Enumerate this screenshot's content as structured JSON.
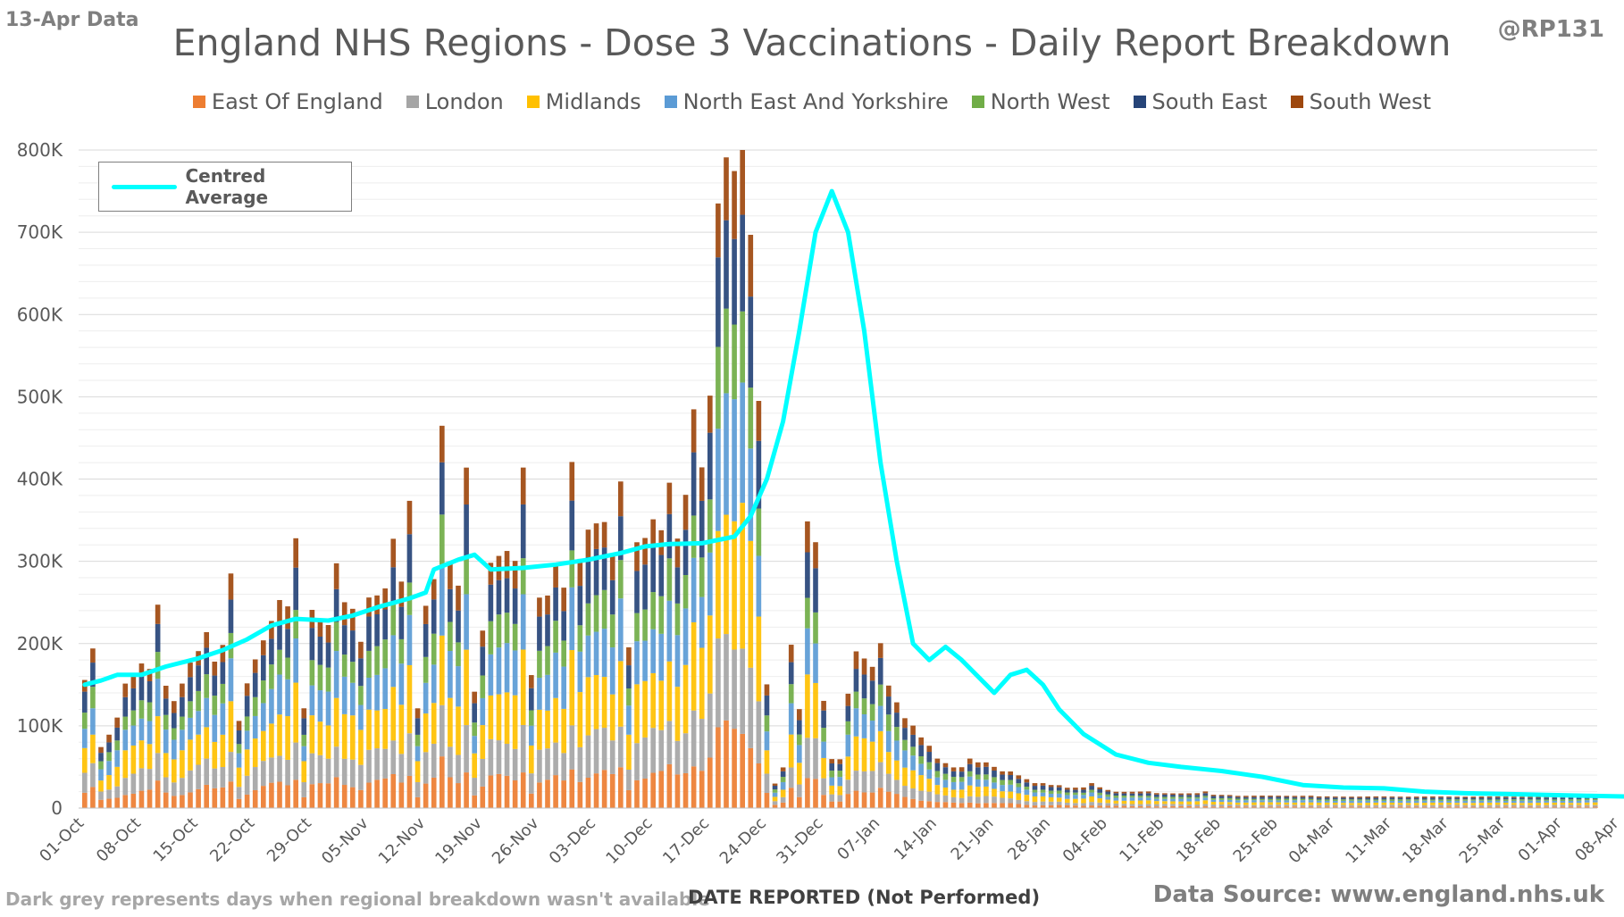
{
  "header": {
    "data_date": "13-Apr Data",
    "handle": "@RP131",
    "title": "England NHS Regions - Dose 3 Vaccinations - Daily Report Breakdown"
  },
  "footer": {
    "note": "Dark grey represents days when regional breakdown wasn't available",
    "x_title": "DATE REPORTED (Not Performed)",
    "source": "Data Source: www.england.nhs.uk"
  },
  "avg_legend_label": "Centred Average",
  "chart_data": {
    "type": "bar",
    "stacked": true,
    "title": "England NHS Regions - Dose 3 Vaccinations - Daily Report Breakdown",
    "xlabel": "DATE REPORTED (Not Performed)",
    "ylabel": "",
    "ylim": [
      0,
      800000
    ],
    "y_ticks": [
      "0",
      "100K",
      "200K",
      "300K",
      "400K",
      "500K",
      "600K",
      "700K",
      "800K"
    ],
    "x_tick_labels": [
      "01-Oct",
      "08-Oct",
      "15-Oct",
      "22-Oct",
      "29-Oct",
      "05-Nov",
      "12-Nov",
      "19-Nov",
      "26-Nov",
      "03-Dec",
      "10-Dec",
      "17-Dec",
      "24-Dec",
      "31-Dec",
      "07-Jan",
      "14-Jan",
      "21-Jan",
      "28-Jan",
      "04-Feb",
      "11-Feb",
      "18-Feb",
      "25-Feb",
      "04-Mar",
      "11-Mar",
      "18-Mar",
      "25-Mar",
      "01-Apr",
      "08-Apr"
    ],
    "grid": true,
    "legend_position": "top",
    "series": [
      {
        "name": "East Of England",
        "color": "#ed7d31",
        "share": 0.12
      },
      {
        "name": "London",
        "color": "#a5a5a5",
        "share": 0.14
      },
      {
        "name": "Midlands",
        "color": "#ffc000",
        "share": 0.2
      },
      {
        "name": "North East And Yorkshire",
        "color": "#5b9bd5",
        "share": 0.17
      },
      {
        "name": "North West",
        "color": "#70ad47",
        "share": 0.12
      },
      {
        "name": "South East",
        "color": "#264478",
        "share": 0.15
      },
      {
        "name": "South West",
        "color": "#9e480e",
        "share": 0.1
      }
    ],
    "daily_totals_k": [
      155,
      195,
      75,
      90,
      110,
      150,
      160,
      175,
      170,
      250,
      150,
      130,
      150,
      175,
      190,
      215,
      180,
      200,
      285,
      105,
      150,
      180,
      205,
      230,
      255,
      245,
      325,
      120,
      240,
      230,
      225,
      300,
      250,
      240,
      200,
      255,
      260,
      270,
      330,
      275,
      370,
      120,
      245,
      280,
      470,
      300,
      270,
      410,
      140,
      215,
      300,
      310,
      315,
      300,
      410,
      160,
      255,
      260,
      300,
      270,
      420,
      300,
      335,
      345,
      350,
      310,
      400,
      195,
      320,
      325,
      350,
      340,
      400,
      330,
      380,
      480,
      410,
      500,
      740,
      800,
      780,
      810,
      690,
      490,
      150,
      30,
      50,
      200,
      120,
      345,
      320,
      130,
      60,
      60,
      140,
      190,
      180,
      170,
      200,
      150,
      130,
      110,
      100,
      85,
      75,
      60,
      55,
      50,
      50,
      60,
      55,
      55,
      50,
      45,
      45,
      40,
      35,
      30,
      30,
      28,
      28,
      25,
      25,
      25,
      30,
      25,
      22,
      20,
      20,
      20,
      20,
      20,
      18,
      18,
      18,
      18,
      18,
      18,
      20,
      16,
      16,
      16,
      15,
      15,
      15,
      15,
      15,
      15,
      15,
      15,
      15,
      15,
      14,
      14,
      14,
      14,
      14,
      14,
      14,
      14,
      14,
      14,
      14,
      14,
      14,
      14,
      14,
      14,
      14,
      14,
      14,
      14,
      14,
      14,
      14,
      14,
      14,
      14,
      14,
      14,
      14,
      14,
      14,
      14,
      14,
      15,
      15
    ],
    "centred_average_k": [
      [
        0,
        150
      ],
      [
        2,
        155
      ],
      [
        4,
        162
      ],
      [
        7,
        162
      ],
      [
        10,
        172
      ],
      [
        14,
        182
      ],
      [
        17,
        192
      ],
      [
        20,
        205
      ],
      [
        23,
        222
      ],
      [
        26,
        230
      ],
      [
        30,
        228
      ],
      [
        33,
        234
      ],
      [
        36,
        244
      ],
      [
        40,
        255
      ],
      [
        42,
        262
      ],
      [
        43,
        290
      ],
      [
        46,
        302
      ],
      [
        48,
        308
      ],
      [
        50,
        290
      ],
      [
        54,
        292
      ],
      [
        58,
        296
      ],
      [
        62,
        302
      ],
      [
        66,
        310
      ],
      [
        69,
        318
      ],
      [
        72,
        321
      ],
      [
        76,
        322
      ],
      [
        80,
        330
      ],
      [
        82,
        355
      ],
      [
        84,
        400
      ],
      [
        86,
        470
      ],
      [
        88,
        580
      ],
      [
        90,
        700
      ],
      [
        92,
        750
      ],
      [
        94,
        700
      ],
      [
        96,
        580
      ],
      [
        98,
        420
      ],
      [
        100,
        300
      ],
      [
        102,
        200
      ],
      [
        104,
        180
      ],
      [
        106,
        196
      ],
      [
        108,
        180
      ],
      [
        110,
        160
      ],
      [
        112,
        140
      ],
      [
        114,
        162
      ],
      [
        116,
        168
      ],
      [
        118,
        150
      ],
      [
        120,
        120
      ],
      [
        123,
        90
      ],
      [
        127,
        65
      ],
      [
        131,
        55
      ],
      [
        135,
        50
      ],
      [
        140,
        45
      ],
      [
        145,
        38
      ],
      [
        150,
        28
      ],
      [
        155,
        25
      ],
      [
        160,
        24
      ],
      [
        165,
        20
      ],
      [
        170,
        18
      ],
      [
        175,
        17
      ],
      [
        180,
        16
      ],
      [
        185,
        15
      ],
      [
        190,
        14
      ],
      [
        195,
        14
      ],
      [
        200,
        13
      ],
      [
        205,
        13
      ],
      [
        209,
        14
      ]
    ]
  }
}
